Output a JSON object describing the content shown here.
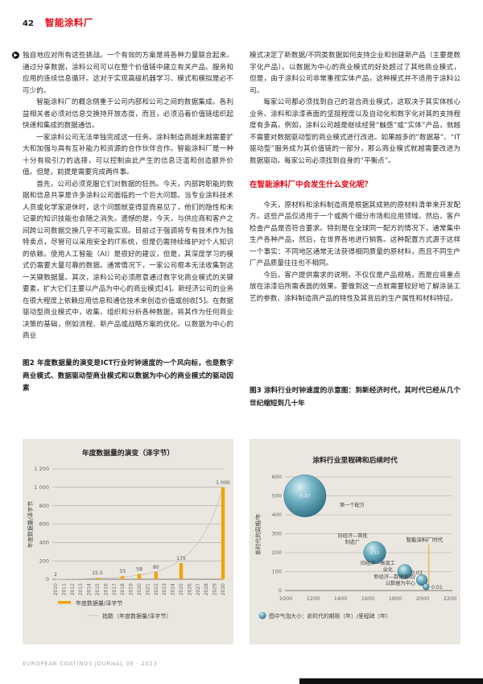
{
  "header": {
    "page_number": "42",
    "section_title": "智能涂料厂"
  },
  "left_column": {
    "paragraphs": [
      "独自地应对所有这些挑战。一个有效的方案是将各种力量联合起来。通过分享数据，涂料公司可以在整个价值链中建立有关产品、服务和应用的连续信息循环。这对于实现高级机器学习、模式和模拟是必不可少的。",
      "智能涂料厂的概念侧重于公司内部和公司之间的数据集成。各利益相关者必须对信息交换持开放态度，而且，必须沿着价值链组织起快速和集成的数据通信。",
      "一家涂料公司无法单独完成这一任务。涂料制造商越来越需要扩大和加强与具有互补能力和资源的合作伙伴合作。智能涂料厂是一种十分有吸引力的选择，可以控制由此产生的信息泛滥和创造额外价值。但是，前提是需要完成两件事。",
      "首先，公司必须克服它们对数据的狂热。今天，内部跨职能的数据和信息共享是许多涂料公司面临的一个巨大问题。当专业涂料技术人员或化学家退休时，这个问题就变得显而易见了，他们的隐性和未记录的知识技能也会随之消失。遗憾的是，今天，与供应商和客户之间跨公司数据交换几乎不可能实现。目前过于强调将专有技术作为独特卖点，尽管可以采用安全的IT系统，但是仍需持续维护对个人知识的依赖。使用人工智能（AI）是很好的建议，但是，其深度学习的模式仍需要大量可靠的数据。通常情况下，一家公司根本无法收集到这一关键数据量。其次，涂料公司必须愿意通过数字化商业模式的关键要素，扩大它们主要以产品为中心的商业模式[4]。新经济公司的业务在很大程度上依赖应用信息和通信技术来创造价值或创收[5]。在数据驱动型商业模式中，收集、组织和分析各种数据，将其作为任何商业决策的基础，例如流程、新产品或战略方案的优化。以数据为中心的商业"
    ],
    "figure2_caption": "图2 年度数据量的演变是ICT行业时钟速度的一个风向标，也是数字商业模式、数据驱动型商业模式和以数据为中心的商业模式的驱动因素"
  },
  "right_column": {
    "paragraphs_before_heading": [
      "模式决定了新数据/不同类数据如何支持企业和创建新产品（主要是数字化产品）。以数据为中心的商业模式的好处超过了其他商业模式，但是，由于涂料公司非常重视实体产品，这种模式并不适用于涂料公司。",
      "每家公司都必须找到自己的混合商业模式，这取决于其实体核心业务、涂料和涂漆表面的坚挺程度以及自动化和数字化对其的支持程度有多高。例如，涂料公司越是继续经营“触感”或“实体”产品，就越不需要对数据驱动型的商业模式进行改进。如果越多的“数据基”、“IT驱动型”服务成为其价值链的一部分，那么商业模式就越需要改进为数据驱动。每家公司必须找到自身的“平衡点”。"
    ],
    "heading": "在智能涂料厂中会发生什么变化呢？",
    "paragraphs_after_heading": [
      "今天，原材料和涂料制造商是根据其成熟的原材料清单来开发配方。这些产品仅适用于一个或两个细分市场和应用领域。然后，客户检查产品是否符合要求。特别是在全球同一配方的情况下，通常集中生产各种产品，然后，在世界各地进行销售。这种配置方式源于这样一个事实：不同地区通常无法获得相同质量的原材料，而且不同生产厂产品质量往往也不相同。",
      "今后，客户提供需求的说明，不仅仅是产品规格，而是应将重点放在涂漆后所需表面的效果。要做到这一点就需要较好地了解涂装工艺的参数、涂料制造商产品的特性及其背后的生产属性和材料特征。"
    ],
    "figure3_caption": "图3 涂料行业时钟速度的示意图：到新经济时代，其时代已经从几个世纪缩短到几十年"
  },
  "footer": {
    "text": "EUROPEAN COATINGS JOURNAL 06 - 2023"
  },
  "colors": {
    "accent_red": "#e30613",
    "panel_bg": "#eae7e1",
    "bar_orange": "#f1a30a",
    "trend_gray": "#c9c5bd",
    "bubble_teal_mid": "#6fb0c2",
    "bubble_teal_dark": "#2e6e84",
    "era_line_yellow": "#e5b94f",
    "grid_gray": "#aaa49b"
  },
  "chart_data": [
    {
      "type": "bar",
      "title": "年度数据量的演变（泽字节）",
      "xlabel": "",
      "ylabel": "年度数据量/泽字节",
      "ylim": [
        0,
        1200
      ],
      "ytick_values": [
        1200,
        1000,
        800,
        600,
        400,
        200,
        0
      ],
      "ytick_labels": [
        "1 200",
        "1 000",
        "800",
        "600",
        "400",
        "200",
        "0"
      ],
      "categories": [
        2010,
        2011,
        2012,
        2013,
        2014,
        2015,
        2016,
        2017,
        2018,
        2019,
        2020,
        2021,
        2022,
        2023,
        2024,
        2025,
        2026,
        2027,
        2028,
        2029,
        2030
      ],
      "bars": [
        {
          "year": 2010,
          "value": 2,
          "label": "2"
        },
        {
          "year": 2015,
          "value": 15.5,
          "label": "15.5"
        },
        {
          "year": 2018,
          "value": 33,
          "label": "33"
        },
        {
          "year": 2020,
          "value": 58,
          "label": "58"
        },
        {
          "year": 2022,
          "value": 80,
          "label": "80"
        },
        {
          "year": 2025,
          "value": 175,
          "label": "175"
        },
        {
          "year": 2030,
          "value": 1000,
          "label": "1 000"
        }
      ],
      "trend": {
        "type": "exponential",
        "start_year": 2010,
        "end_year": 2030,
        "start_value": 2,
        "end_value": 1000
      },
      "legend": [
        "年度数据量/泽字节",
        "指数（年度数据量/泽字节）"
      ],
      "grid": true
    },
    {
      "type": "scatter",
      "subtype": "bubble",
      "title": "涂料行业里程碑和后续时代",
      "xlabel": "",
      "ylabel": "新时代的周期/年",
      "xlim": [
        1000,
        2200
      ],
      "ylim": [
        0,
        600
      ],
      "xticks": [
        1000,
        1200,
        1400,
        1600,
        1800,
        2000,
        2200
      ],
      "yticks": [
        0,
        100,
        200,
        300,
        400,
        500,
        600
      ],
      "points": [
        {
          "label": "第一个配方",
          "x": 1140,
          "y": 500,
          "value": 0.43,
          "value_label": "0.43",
          "value_position": "inside"
        },
        {
          "label": "旧经济—首批制造厂",
          "x": 1650,
          "y": 200,
          "value": 0.12,
          "value_label": "0.12",
          "value_position": "inside"
        },
        {
          "label": "旧经济—高度工业化",
          "x": 1870,
          "y": 100,
          "value": 0.05,
          "value_label": "0.05",
          "value_position": "inside"
        },
        {
          "label": "新经济—数据驱动",
          "x": 1995,
          "y": 55,
          "value": 0.03,
          "value_label": "0.03",
          "value_position": "beside"
        },
        {
          "label": "以数据为中心",
          "x": 2025,
          "y": 20,
          "value": 0.01,
          "value_label": "0.01",
          "value_position": "beside"
        }
      ],
      "era_line": {
        "label": "智能涂料厂时代",
        "x": 2045
      },
      "size_legend": "图中气泡大小：新时代的期限（年）/里程碑（年）",
      "grid": true
    }
  ]
}
